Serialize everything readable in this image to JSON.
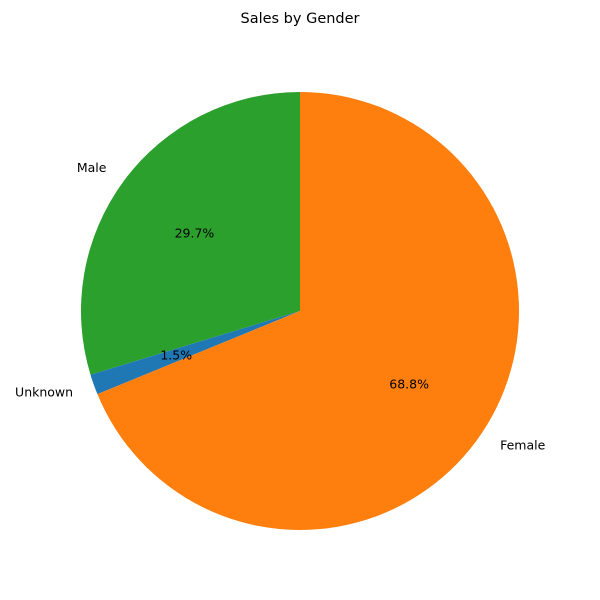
{
  "chart_data": {
    "type": "pie",
    "title": "Sales by Gender",
    "labels": [
      "Male",
      "Unknown",
      "Female"
    ],
    "values": [
      29.7,
      1.5,
      68.8
    ],
    "percent_labels": [
      "29.7%",
      "1.5%",
      "68.8%"
    ],
    "colors": [
      "#2ca02c",
      "#1f77b4",
      "#ff7f0e"
    ],
    "start": "top",
    "direction": "counter-clockwise",
    "legend": "none"
  }
}
